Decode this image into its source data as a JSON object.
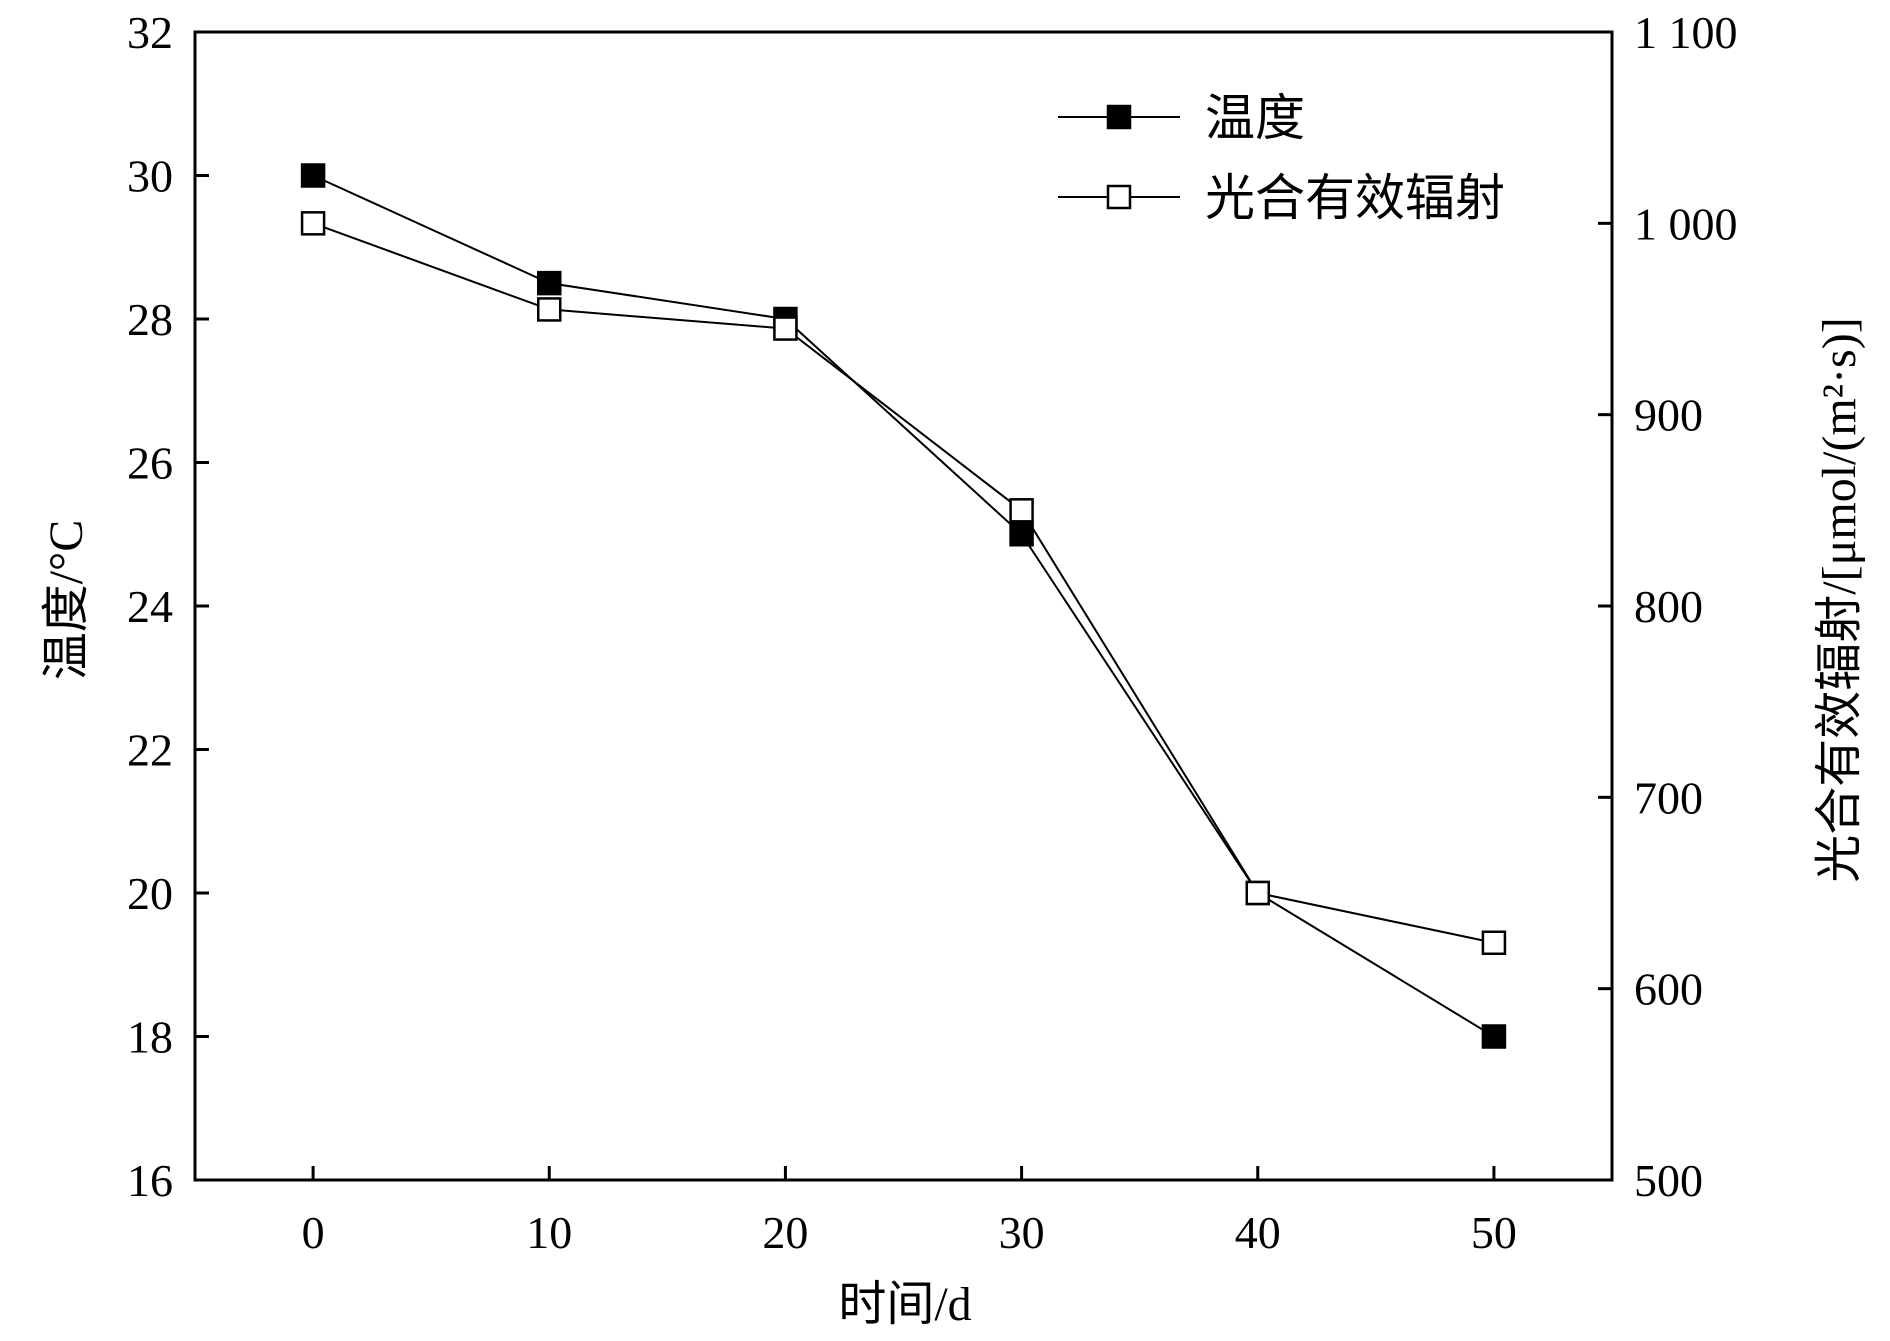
{
  "chart_data": {
    "type": "line",
    "x": [
      0,
      10,
      20,
      30,
      40,
      50
    ],
    "xlabel": "时间/d",
    "ylabel": "温度/°C",
    "ylabel_right": "光合有效辐射/[μmol/(m²·s)]",
    "xlim": [
      -5,
      55
    ],
    "ylim": [
      16,
      32
    ],
    "ylim_right": [
      500,
      1100
    ],
    "x_ticks": [
      "0",
      "10",
      "20",
      "30",
      "40",
      "50"
    ],
    "y_ticks": [
      "16",
      "18",
      "20",
      "22",
      "24",
      "26",
      "28",
      "30",
      "32"
    ],
    "y_ticks_right": [
      "500",
      "600",
      "700",
      "800",
      "900",
      "1 000",
      "1 100"
    ],
    "grid": false,
    "legend_position": "top-right",
    "series": [
      {
        "name": "温度",
        "axis": "left",
        "marker": "filled-square",
        "values": [
          30,
          28.5,
          28,
          25,
          20,
          18
        ]
      },
      {
        "name": "光合有效辐射",
        "axis": "right",
        "marker": "open-square",
        "values": [
          1000,
          955,
          945,
          850,
          650,
          624
        ]
      }
    ]
  }
}
